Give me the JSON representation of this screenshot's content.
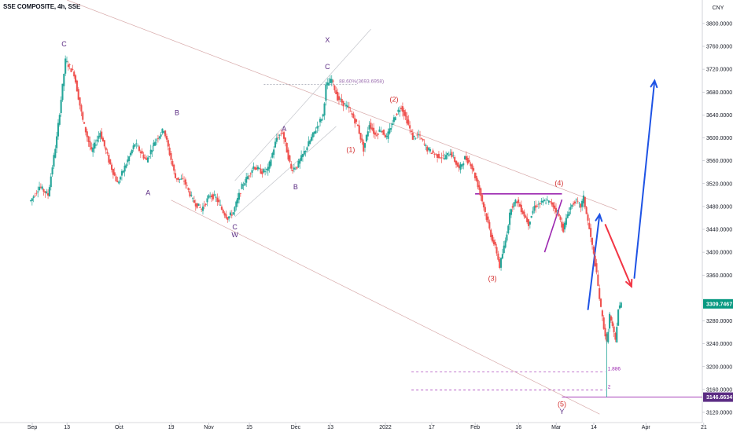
{
  "header": {
    "title": "SSE COMPOSITE, 4h, SSE"
  },
  "chart_data": {
    "type": "candlestick",
    "title": "SSE COMPOSITE, 4h, SSE",
    "currency": "CNY",
    "ylim": [
      3100,
      3840
    ],
    "y_ticks": [
      "3800.0000",
      "3760.0000",
      "3720.0000",
      "3680.0000",
      "3640.0000",
      "3600.0000",
      "3560.0000",
      "3520.0000",
      "3480.0000",
      "3440.0000",
      "3400.0000",
      "3360.0000",
      "3280.0000",
      "3240.0000",
      "3200.0000",
      "3160.0000",
      "3120.0000"
    ],
    "x_ticks": [
      "Sep",
      "13",
      "Oct",
      "19",
      "Nov",
      "15",
      "Dec",
      "13",
      "2022",
      "17",
      "Feb",
      "16",
      "Mar",
      "14",
      "Apr",
      "21"
    ],
    "last_price": "3309.7467",
    "low_price": "3146.6634",
    "colors": {
      "up": "#26a69a",
      "down": "#ef5350",
      "red_arrow": "#f23645",
      "blue_arrow": "#1e53e5",
      "purple": "#9c27b0",
      "label_dark": "#5b2c83"
    },
    "wave_labels": [
      {
        "text": "C",
        "price": 3760,
        "date": "2021-09-12",
        "color": "dark"
      },
      {
        "text": "A",
        "price": 3500,
        "date": "2021-10-11",
        "color": "dark"
      },
      {
        "text": "B",
        "price": 3640,
        "date": "2021-10-21",
        "color": "dark"
      },
      {
        "text": "C",
        "price": 3440,
        "date": "2021-11-10",
        "color": "dark"
      },
      {
        "text": "W",
        "price": 3426,
        "date": "2021-11-10",
        "color": "dark"
      },
      {
        "text": "A",
        "price": 3612,
        "date": "2021-11-27",
        "color": "dark"
      },
      {
        "text": "B",
        "price": 3510,
        "date": "2021-12-01",
        "color": "dark"
      },
      {
        "text": "X",
        "price": 3767,
        "date": "2021-12-12",
        "color": "dark"
      },
      {
        "text": "C",
        "price": 3720,
        "date": "2021-12-12",
        "color": "dark"
      },
      {
        "text": "(1)",
        "price": 3575,
        "date": "2021-12-20",
        "color": "red"
      },
      {
        "text": "(2)",
        "price": 3663,
        "date": "2022-01-04",
        "color": "red"
      },
      {
        "text": "(3)",
        "price": 3350,
        "date": "2022-02-07",
        "color": "red"
      },
      {
        "text": "(4)",
        "price": 3517,
        "date": "2022-03-02",
        "color": "red"
      },
      {
        "text": "(5)",
        "price": 3130,
        "date": "2022-03-03",
        "color": "red"
      },
      {
        "text": "Y",
        "price": 3117,
        "date": "2022-03-03",
        "color": "dark"
      }
    ],
    "fib_labels": [
      {
        "text": "88.60%(3693.6958)",
        "price": 3693.7
      },
      {
        "text": "1.886",
        "price": 3191
      },
      {
        "text": "2",
        "price": 3159
      }
    ]
  }
}
